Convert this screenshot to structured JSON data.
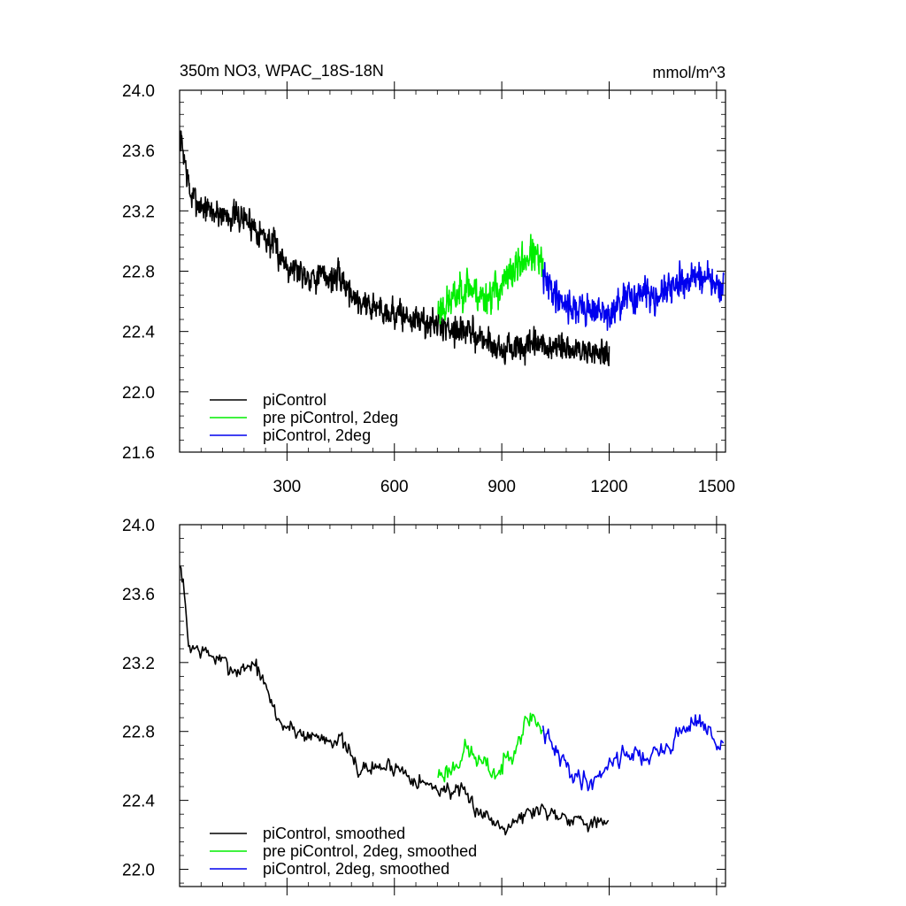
{
  "chart_data": [
    {
      "type": "line",
      "title": "350m NO3, WPAC_18S-18N",
      "units": "mmol/m^3",
      "xlim": [
        0,
        1525
      ],
      "ylim": [
        21.6,
        24.0
      ],
      "x_ticks": [
        300,
        600,
        900,
        1200,
        1500
      ],
      "x_tick_labels": [
        "300",
        "600",
        "900",
        "1200",
        "1500"
      ],
      "y_ticks": [
        21.6,
        22.0,
        22.4,
        22.8,
        23.2,
        23.6,
        24.0
      ],
      "y_tick_labels": [
        "21.6",
        "22.0",
        "22.4",
        "22.8",
        "23.2",
        "23.6",
        "24.0"
      ],
      "legend_position": "bottom-left",
      "series": [
        {
          "name": "piControl",
          "color": "#000000",
          "x_range": [
            1,
            1200
          ],
          "step": 1,
          "noise": 0.14,
          "seed": 7,
          "trend_points": [
            [
              1,
              23.7
            ],
            [
              10,
              23.6
            ],
            [
              30,
              23.3
            ],
            [
              80,
              23.2
            ],
            [
              180,
              23.15
            ],
            [
              210,
              23.1
            ],
            [
              250,
              23.0
            ],
            [
              300,
              22.85
            ],
            [
              350,
              22.78
            ],
            [
              450,
              22.75
            ],
            [
              500,
              22.6
            ],
            [
              600,
              22.52
            ],
            [
              700,
              22.45
            ],
            [
              780,
              22.42
            ],
            [
              850,
              22.35
            ],
            [
              900,
              22.28
            ],
            [
              1000,
              22.3
            ],
            [
              1100,
              22.28
            ],
            [
              1200,
              22.25
            ]
          ]
        },
        {
          "name": "pre piControl, 2deg",
          "color": "#00ee00",
          "x_range": [
            722,
            1015
          ],
          "step": 1,
          "noise": 0.17,
          "seed": 23,
          "trend_points": [
            [
              722,
              22.55
            ],
            [
              760,
              22.6
            ],
            [
              800,
              22.72
            ],
            [
              850,
              22.62
            ],
            [
              900,
              22.7
            ],
            [
              950,
              22.85
            ],
            [
              985,
              22.92
            ],
            [
              1015,
              22.82
            ]
          ]
        },
        {
          "name": "piControl, 2deg",
          "color": "#0000ee",
          "x_range": [
            1015,
            1520
          ],
          "step": 1,
          "noise": 0.15,
          "seed": 41,
          "trend_points": [
            [
              1015,
              22.75
            ],
            [
              1050,
              22.65
            ],
            [
              1100,
              22.55
            ],
            [
              1150,
              22.55
            ],
            [
              1200,
              22.5
            ],
            [
              1250,
              22.62
            ],
            [
              1300,
              22.65
            ],
            [
              1350,
              22.65
            ],
            [
              1400,
              22.72
            ],
            [
              1450,
              22.78
            ],
            [
              1500,
              22.7
            ],
            [
              1520,
              22.68
            ]
          ]
        }
      ]
    },
    {
      "type": "line",
      "title": "",
      "xlim": [
        0,
        1525
      ],
      "ylim": [
        21.9,
        24.0
      ],
      "x_ticks": [
        300,
        600,
        900,
        1200,
        1500
      ],
      "y_ticks": [
        22.0,
        22.4,
        22.8,
        23.2,
        23.6,
        24.0
      ],
      "y_tick_labels": [
        "22.0",
        "22.4",
        "22.8",
        "23.2",
        "23.6",
        "24.0"
      ],
      "legend_position": "bottom-left",
      "series": [
        {
          "name": "piControl, smoothed",
          "color": "#000000",
          "x_range": [
            1,
            1200
          ],
          "step": 3,
          "noise": 0.07,
          "seed": 7,
          "trend_points": [
            [
              1,
              23.75
            ],
            [
              8,
              23.7
            ],
            [
              25,
              23.3
            ],
            [
              80,
              23.25
            ],
            [
              160,
              23.15
            ],
            [
              210,
              23.2
            ],
            [
              250,
              23.0
            ],
            [
              280,
              22.85
            ],
            [
              350,
              22.78
            ],
            [
              450,
              22.75
            ],
            [
              500,
              22.58
            ],
            [
              600,
              22.6
            ],
            [
              700,
              22.48
            ],
            [
              780,
              22.45
            ],
            [
              850,
              22.32
            ],
            [
              900,
              22.25
            ],
            [
              1000,
              22.35
            ],
            [
              1100,
              22.3
            ],
            [
              1200,
              22.25
            ]
          ]
        },
        {
          "name": "pre piControl, 2deg, smoothed",
          "color": "#00ee00",
          "x_range": [
            722,
            1015
          ],
          "step": 3,
          "noise": 0.09,
          "seed": 23,
          "trend_points": [
            [
              722,
              22.55
            ],
            [
              760,
              22.58
            ],
            [
              800,
              22.7
            ],
            [
              850,
              22.6
            ],
            [
              890,
              22.55
            ],
            [
              950,
              22.78
            ],
            [
              985,
              22.9
            ],
            [
              1015,
              22.8
            ]
          ]
        },
        {
          "name": "piControl, 2deg, smoothed",
          "color": "#0000ee",
          "x_range": [
            1015,
            1520
          ],
          "step": 3,
          "noise": 0.08,
          "seed": 41,
          "trend_points": [
            [
              1015,
              22.8
            ],
            [
              1050,
              22.68
            ],
            [
              1100,
              22.55
            ],
            [
              1150,
              22.5
            ],
            [
              1200,
              22.62
            ],
            [
              1250,
              22.68
            ],
            [
              1300,
              22.65
            ],
            [
              1350,
              22.68
            ],
            [
              1400,
              22.8
            ],
            [
              1450,
              22.88
            ],
            [
              1500,
              22.72
            ],
            [
              1520,
              22.7
            ]
          ]
        }
      ]
    }
  ]
}
